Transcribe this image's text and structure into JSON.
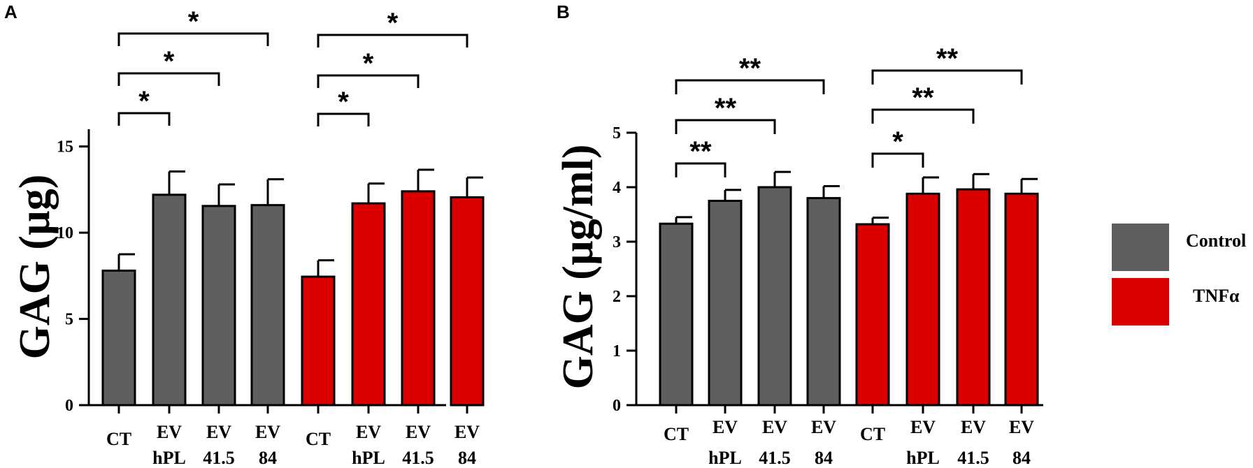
{
  "chart_data": [
    {
      "type": "bar",
      "panel": "A",
      "ylabel": "GAG (µg)",
      "ylim": [
        0,
        16
      ],
      "yticks": [
        0,
        5,
        10,
        15
      ],
      "categories": [
        {
          "line1": "CT",
          "line2": ""
        },
        {
          "line1": "EV",
          "line2": "hPL"
        },
        {
          "line1": "EV",
          "line2": "41.5"
        },
        {
          "line1": "EV",
          "line2": "84"
        },
        {
          "line1": "CT",
          "line2": ""
        },
        {
          "line1": "EV",
          "line2": "hPL"
        },
        {
          "line1": "EV",
          "line2": "41.5"
        },
        {
          "line1": "EV",
          "line2": "84"
        }
      ],
      "groups": [
        "Control",
        "Control",
        "Control",
        "Control",
        "TNFα",
        "TNFα",
        "TNFα",
        "TNFα"
      ],
      "values": [
        7.8,
        12.2,
        11.55,
        11.6,
        7.45,
        11.7,
        12.4,
        12.05
      ],
      "errors": [
        0.95,
        1.35,
        1.25,
        1.5,
        0.95,
        1.15,
        1.25,
        1.15
      ],
      "significance": [
        {
          "from": 0,
          "to": 1,
          "label": "*"
        },
        {
          "from": 0,
          "to": 2,
          "label": "*"
        },
        {
          "from": 0,
          "to": 3,
          "label": "*"
        },
        {
          "from": 4,
          "to": 5,
          "label": "*"
        },
        {
          "from": 4,
          "to": 6,
          "label": "*"
        },
        {
          "from": 4,
          "to": 7,
          "label": "*"
        }
      ]
    },
    {
      "type": "bar",
      "panel": "B",
      "ylabel": "GAG (µg/ml)",
      "ylim": [
        0,
        5
      ],
      "yticks": [
        0,
        1,
        2,
        3,
        4,
        5
      ],
      "categories": [
        {
          "line1": "CT",
          "line2": ""
        },
        {
          "line1": "EV",
          "line2": "hPL"
        },
        {
          "line1": "EV",
          "line2": "41.5"
        },
        {
          "line1": "EV",
          "line2": "84"
        },
        {
          "line1": "CT",
          "line2": ""
        },
        {
          "line1": "EV",
          "line2": "hPL"
        },
        {
          "line1": "EV",
          "line2": "41.5"
        },
        {
          "line1": "EV",
          "line2": "84"
        }
      ],
      "groups": [
        "Control",
        "Control",
        "Control",
        "Control",
        "TNFα",
        "TNFα",
        "TNFα",
        "TNFα"
      ],
      "values": [
        3.33,
        3.75,
        4.0,
        3.8,
        3.32,
        3.88,
        3.96,
        3.88
      ],
      "errors": [
        0.12,
        0.2,
        0.28,
        0.22,
        0.12,
        0.3,
        0.28,
        0.27
      ],
      "significance": [
        {
          "from": 0,
          "to": 1,
          "label": "**"
        },
        {
          "from": 0,
          "to": 2,
          "label": "**"
        },
        {
          "from": 0,
          "to": 3,
          "label": "**"
        },
        {
          "from": 4,
          "to": 5,
          "label": "*"
        },
        {
          "from": 4,
          "to": 6,
          "label": "**"
        },
        {
          "from": 4,
          "to": 7,
          "label": "**"
        }
      ]
    }
  ],
  "legend": [
    {
      "label": "Control",
      "color": "#5f5f5f"
    },
    {
      "label": "TNFα",
      "color": "#db0000"
    }
  ],
  "colors": {
    "Control": "#5f5f5f",
    "TNFα": "#db0000"
  }
}
